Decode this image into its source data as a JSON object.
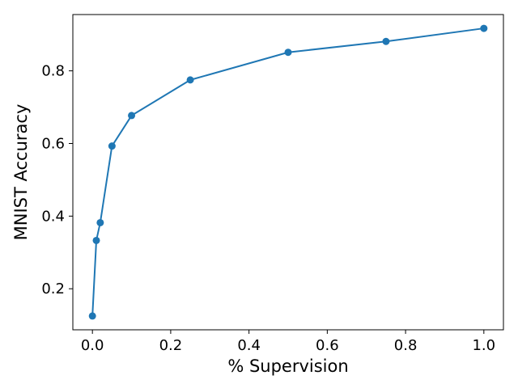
{
  "chart_data": {
    "type": "line",
    "title": "",
    "xlabel": "% Supervision",
    "ylabel": "MNIST Accuracy",
    "xlim": [
      -0.05,
      1.05
    ],
    "ylim": [
      0.087,
      0.955
    ],
    "x_ticks": [
      0.0,
      0.2,
      0.4,
      0.6,
      0.8,
      1.0
    ],
    "x_tick_labels": [
      "0.0",
      "0.2",
      "0.4",
      "0.6",
      "0.8",
      "1.0"
    ],
    "y_ticks": [
      0.2,
      0.4,
      0.6,
      0.8
    ],
    "y_tick_labels": [
      "0.2",
      "0.4",
      "0.6",
      "0.8"
    ],
    "grid": false,
    "legend": "none",
    "series": [
      {
        "color": "#1f77b4",
        "marker": "circle",
        "x": [
          0.0,
          0.01,
          0.02,
          0.05,
          0.1,
          0.25,
          0.5,
          0.75,
          1.0
        ],
        "y": [
          0.125,
          0.333,
          0.382,
          0.593,
          0.677,
          0.775,
          0.851,
          0.881,
          0.917
        ]
      }
    ]
  }
}
